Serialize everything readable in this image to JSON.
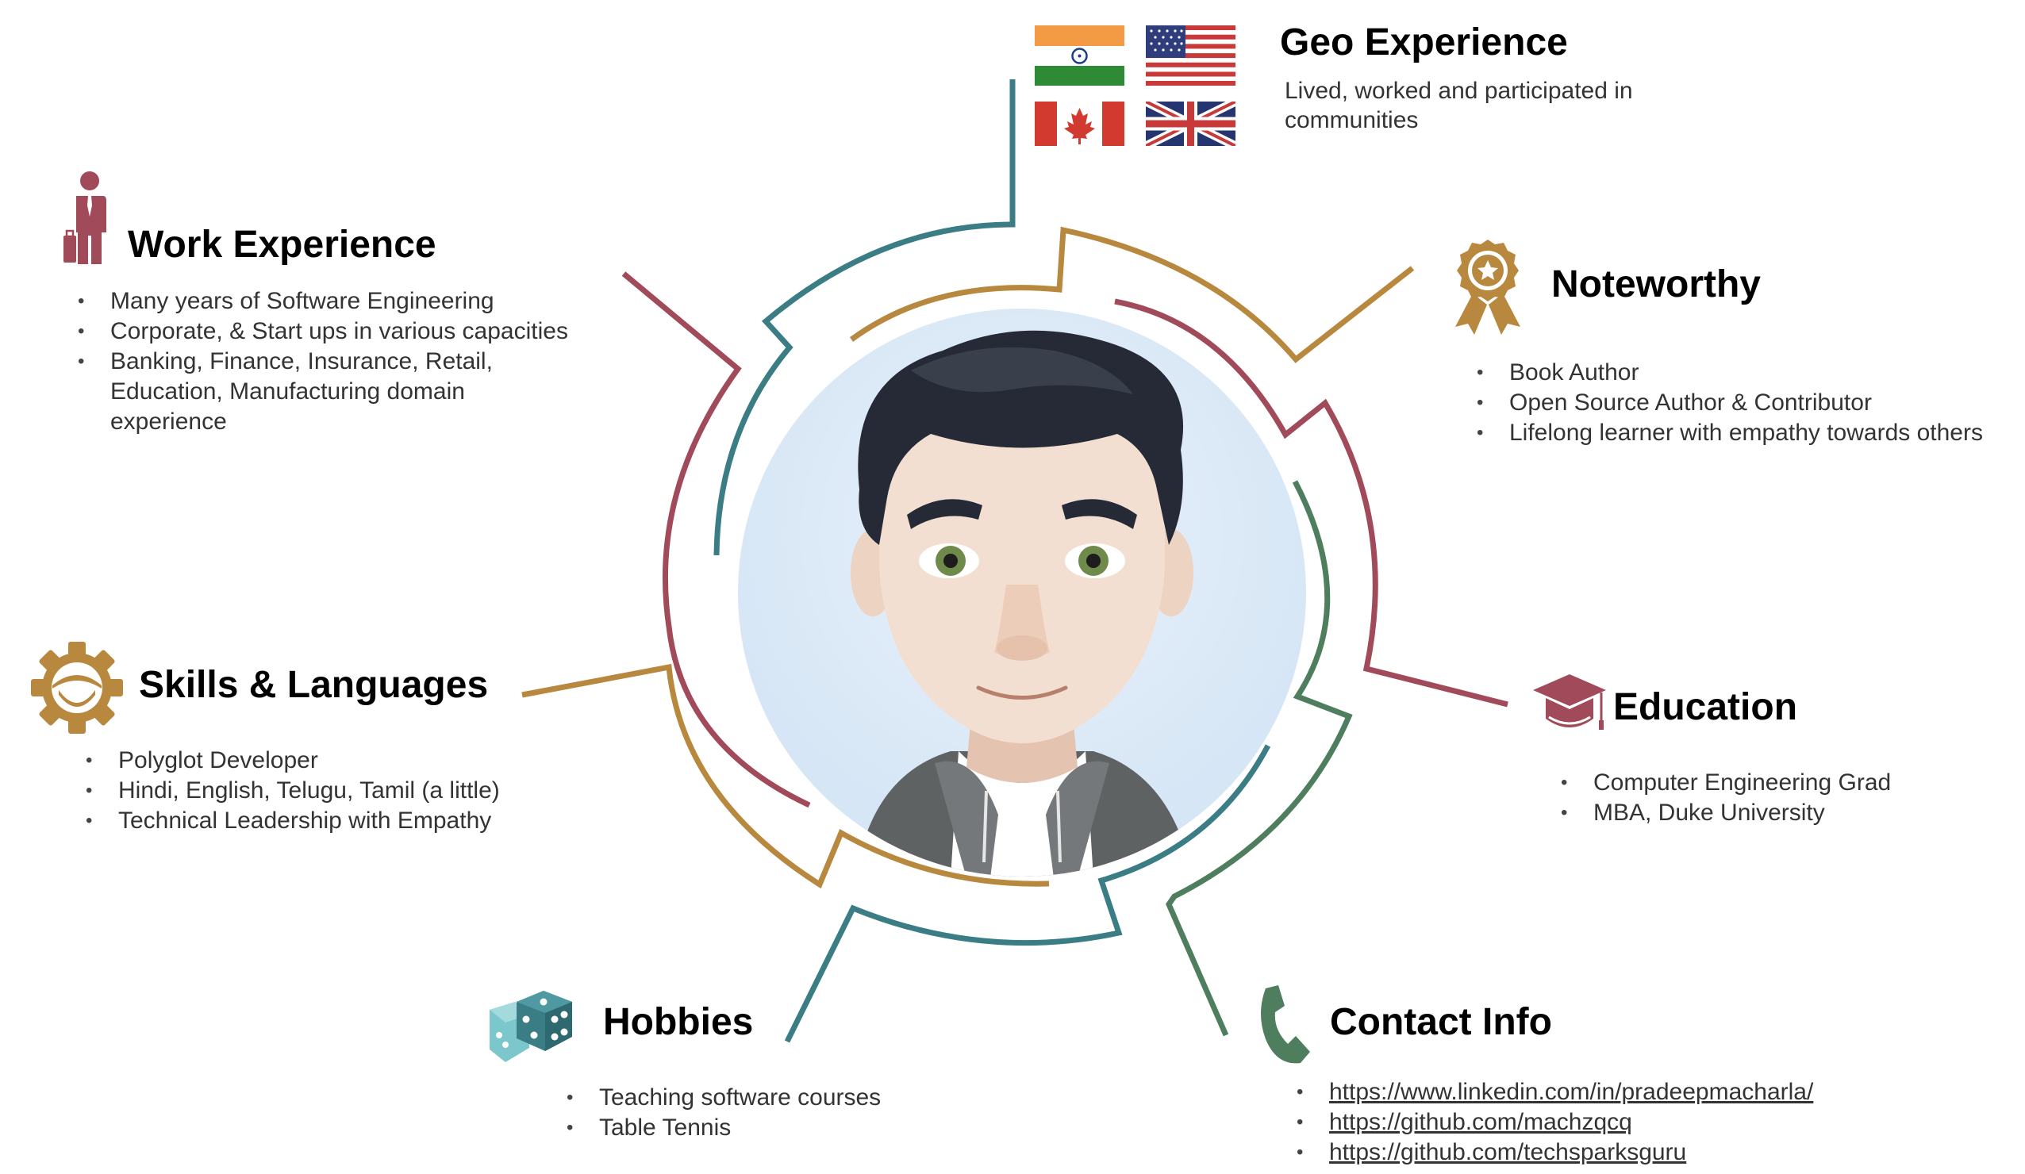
{
  "colors": {
    "teal": "#3b7d84",
    "maroon": "#a14a59",
    "gold": "#b8883f",
    "green": "#4f7e5f",
    "avatar_bg": "#dce9f6"
  },
  "sections": {
    "geo": {
      "title": "Geo Experience",
      "desc": "Lived, worked and participated in communities",
      "flags": [
        "india-flag-icon",
        "usa-flag-icon",
        "canada-flag-icon",
        "uk-flag-icon"
      ]
    },
    "work": {
      "title": "Work Experience",
      "icon": "businessman-icon",
      "items": [
        "Many years of Software Engineering",
        "Corporate, & Start ups in various capacities",
        "Banking, Finance, Insurance, Retail, Education, Manufacturing domain experience"
      ]
    },
    "noteworthy": {
      "title": "Noteworthy",
      "icon": "award-ribbon-icon",
      "items": [
        "Book Author",
        "Open Source Author & Contributor",
        "Lifelong learner with empathy towards others"
      ]
    },
    "skills": {
      "title": "Skills & Languages",
      "icon": "gear-icon",
      "items": [
        "Polyglot Developer",
        "Hindi, English, Telugu, Tamil (a little)",
        "Technical Leadership with Empathy"
      ]
    },
    "education": {
      "title": "Education",
      "icon": "graduation-cap-icon",
      "items": [
        "Computer Engineering Grad",
        "MBA, Duke University"
      ]
    },
    "hobbies": {
      "title": "Hobbies",
      "icon": "dice-icon",
      "items": [
        "Teaching software courses",
        "Table Tennis"
      ]
    },
    "contact": {
      "title": "Contact Info",
      "icon": "phone-icon",
      "links": [
        "https://www.linkedin.com/in/pradeepmacharla/",
        "https://github.com/machzqcq",
        "https://github.com/techsparksguru"
      ]
    }
  }
}
